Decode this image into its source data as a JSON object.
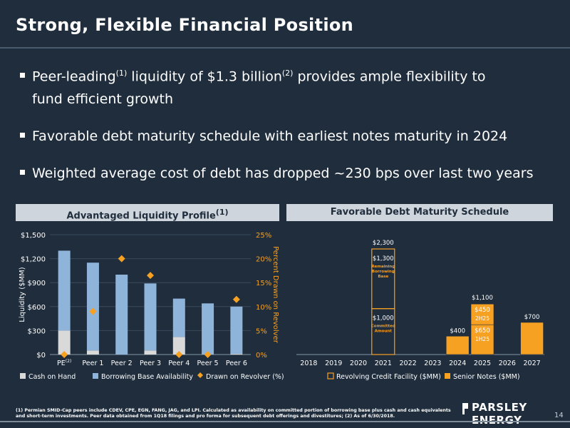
{
  "header": {
    "title": "Strong, Flexible Financial Position"
  },
  "bullets": [
    {
      "pre": "Peer-leading",
      "sup1": "(1)",
      "mid": " liquidity of $1.3 billion",
      "sup2": "(2)",
      "post": " provides ample flexibility to"
    },
    {
      "text": "fund efficient growth"
    },
    {
      "text": "Favorable debt maturity schedule with earliest notes maturity in 2024"
    },
    {
      "text": "Weighted average cost of debt has dropped ~230 bps over last two years"
    }
  ],
  "left_panel": {
    "title": "Advantaged Liquidity Profile",
    "title_sup": "(1)"
  },
  "right_panel": {
    "title": "Favorable Debt Maturity Schedule"
  },
  "chart_data": [
    {
      "type": "bar",
      "stacked": true,
      "categories": [
        "PE",
        "Peer 1",
        "Peer 2",
        "Peer 3",
        "Peer 4",
        "Peer 5",
        "Peer 6"
      ],
      "category_sup": {
        "PE": "(2)"
      },
      "series": [
        {
          "name": "Cash on Hand",
          "color": "#d9d9d9",
          "values": [
            300,
            50,
            0,
            50,
            220,
            0,
            10
          ]
        },
        {
          "name": "Borrowing Base Availability",
          "color": "#8fb4d9",
          "values": [
            1000,
            1100,
            1000,
            840,
            480,
            640,
            590
          ]
        },
        {
          "name": "Drawn on Revolver (%)",
          "color": "#f7a123",
          "axis": "right",
          "marker": "diamond",
          "values": [
            0,
            9,
            20,
            16.5,
            0,
            0,
            11.5
          ]
        }
      ],
      "ylabel": "Liquidity ($MM)",
      "y2label": "Percent Drawn on Revolver",
      "ylim": [
        0,
        1500
      ],
      "yticks": [
        "$0",
        "$300",
        "$600",
        "$900",
        "$1,200",
        "$1,500"
      ],
      "y2lim": [
        0,
        25
      ],
      "y2ticks": [
        "0%",
        "5%",
        "10%",
        "15%",
        "20%",
        "25%"
      ],
      "legend": "bottom"
    },
    {
      "type": "bar",
      "stacked": true,
      "categories": [
        "2018",
        "2019",
        "2020",
        "2021",
        "2022",
        "2023",
        "2024",
        "2025",
        "2026",
        "2027"
      ],
      "series": [
        {
          "name": "Revolving Credit Facility ($MM)",
          "color": "#f7a123",
          "style": "outline",
          "segments": [
            {
              "x": "2021",
              "value": 1000,
              "label": "$1,000",
              "sublabel": "Committed Amount"
            },
            {
              "x": "2021",
              "value": 1300,
              "label": "$1,300",
              "sublabel": "Remaining Borrowing Base"
            }
          ]
        },
        {
          "name": "Senior Notes ($MM)",
          "color": "#f7a123",
          "style": "filled",
          "segments": [
            {
              "x": "2024",
              "value": 400,
              "label": "$400"
            },
            {
              "x": "2025",
              "value": 650,
              "label": "$650",
              "sublabel": "1H25"
            },
            {
              "x": "2025",
              "value": 450,
              "label": "$450",
              "sublabel": "2H25"
            },
            {
              "x": "2027",
              "value": 700,
              "label": "$700"
            }
          ]
        }
      ],
      "totals": [
        {
          "x": "2021",
          "label": "$2,300"
        },
        {
          "x": "2025",
          "label": "$1,100"
        }
      ],
      "ylim": [
        0,
        2300
      ],
      "legend": "bottom"
    }
  ],
  "footer": {
    "footnote": "(1) Permian SMID-Cap peers include CDEV, CPE, EGN, FANG, JAG, and LPI. Calculated as availability on committed portion of borrowing base plus cash and cash equivalents and short-term investments. Peer data obtained from 1Q18 filings and pro forma for subsequent debt offerings and divestitures; (2) As of 6/30/2018.",
    "logo": "PARSLEY ENERGY",
    "page": "14"
  }
}
